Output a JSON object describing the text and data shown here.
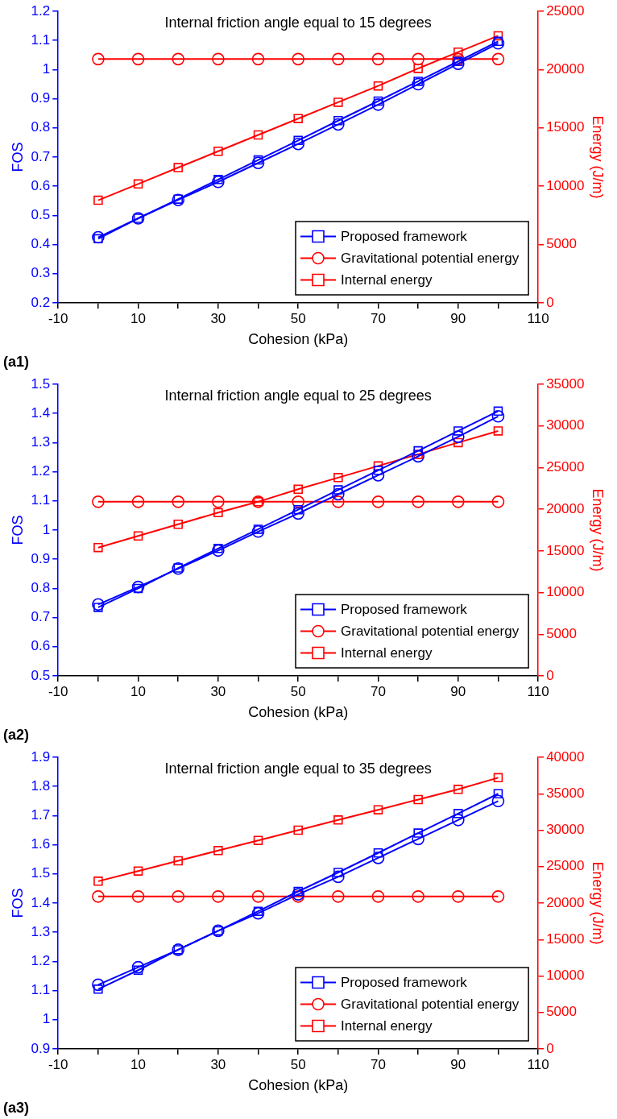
{
  "chart_data": [
    {
      "type": "line",
      "title": "Internal friction angle equal to 15 degrees",
      "xlabel": "Cohesion (kPa)",
      "ylabel": "FOS",
      "y2label": "Energy (J/m)",
      "annotations": [
        "(a1)"
      ],
      "x": [
        0,
        10,
        20,
        30,
        40,
        50,
        60,
        70,
        80,
        90,
        100
      ],
      "xlim": [
        -10,
        110
      ],
      "xticks": [
        -10,
        {
          "value": 0,
          "label": null
        },
        10,
        {
          "value": 20,
          "label": null
        },
        30,
        {
          "value": 40,
          "label": null
        },
        50,
        {
          "value": 60,
          "label": null
        },
        70,
        {
          "value": 80,
          "label": null
        },
        90,
        {
          "value": 100,
          "label": null
        },
        110
      ],
      "ylim": [
        0.2,
        1.2
      ],
      "yticks": [
        0.2,
        0.3,
        0.4,
        0.5,
        0.6,
        0.7,
        0.8,
        0.9,
        1,
        1.1,
        1.2
      ],
      "y2lim": [
        0,
        25000
      ],
      "y2ticks": [
        0,
        5000,
        10000,
        15000,
        20000,
        25000
      ],
      "grid": false,
      "legend": "bottom right",
      "line_style": "solid",
      "series": [
        {
          "color": "#0000ff",
          "marker": "circle",
          "values": [
            0.425,
            0.49,
            0.553,
            0.615,
            0.68,
            0.745,
            0.812,
            0.88,
            0.95,
            1.02,
            1.09
          ]
        },
        {
          "name": "Proposed framework",
          "color": "#0000ff",
          "marker": "square",
          "values": [
            0.42,
            0.49,
            0.556,
            0.623,
            0.69,
            0.757,
            0.825,
            0.892,
            0.96,
            1.028,
            1.097
          ]
        },
        {
          "name": "Gravitational potential energy",
          "color": "#ff0000",
          "marker": "circle",
          "axis": "y2",
          "values": [
            20900,
            20900,
            20900,
            20900,
            20900,
            20900,
            20900,
            20900,
            20900,
            20900,
            20900
          ]
        },
        {
          "name": "Internal energy",
          "color": "#ff0000",
          "marker": "square",
          "axis": "y2",
          "values": [
            8800,
            10200,
            11600,
            13000,
            14400,
            15800,
            17200,
            18600,
            20100,
            21500,
            22900
          ]
        }
      ]
    },
    {
      "type": "line",
      "title": "Internal friction angle equal to 25 degrees",
      "xlabel": "Cohesion (kPa)",
      "ylabel": "FOS",
      "y2label": "Energy (J/m)",
      "annotations": [
        "(a2)"
      ],
      "x": [
        0,
        10,
        20,
        30,
        40,
        50,
        60,
        70,
        80,
        90,
        100
      ],
      "xlim": [
        -10,
        110
      ],
      "xticks": [
        -10,
        {
          "value": 0,
          "label": null
        },
        10,
        {
          "value": 20,
          "label": null
        },
        30,
        {
          "value": 40,
          "label": null
        },
        50,
        {
          "value": 60,
          "label": null
        },
        70,
        {
          "value": 80,
          "label": null
        },
        90,
        {
          "value": 100,
          "label": null
        },
        110
      ],
      "ylim": [
        0.5,
        1.5
      ],
      "yticks": [
        0.5,
        0.6,
        0.7,
        0.8,
        0.9,
        1,
        1.1,
        1.2,
        1.3,
        1.4,
        1.5
      ],
      "y2lim": [
        0,
        35000
      ],
      "y2ticks": [
        0,
        5000,
        10000,
        15000,
        20000,
        25000,
        30000,
        35000
      ],
      "grid": false,
      "legend": "bottom right",
      "line_style": "solid",
      "series": [
        {
          "color": "#0000ff",
          "marker": "circle",
          "values": [
            0.745,
            0.805,
            0.868,
            0.93,
            0.995,
            1.057,
            1.123,
            1.188,
            1.253,
            1.32,
            1.39
          ]
        },
        {
          "name": "Proposed framework",
          "color": "#0000ff",
          "marker": "square",
          "values": [
            0.735,
            0.8,
            0.87,
            0.937,
            1.003,
            1.07,
            1.138,
            1.205,
            1.272,
            1.34,
            1.408
          ]
        },
        {
          "name": "Gravitational potential energy",
          "color": "#ff0000",
          "marker": "circle",
          "axis": "y2",
          "values": [
            20900,
            20900,
            20900,
            20900,
            20900,
            20900,
            20900,
            20900,
            20900,
            20900,
            20900
          ]
        },
        {
          "name": "Internal energy",
          "color": "#ff0000",
          "marker": "square",
          "axis": "y2",
          "values": [
            15400,
            16800,
            18200,
            19600,
            20900,
            22400,
            23800,
            25200,
            26600,
            28000,
            29400
          ]
        }
      ]
    },
    {
      "type": "line",
      "title": "Internal friction angle equal to 35 degrees",
      "xlabel": "Cohesion (kPa)",
      "ylabel": "FOS",
      "y2label": "Energy (J/m)",
      "annotations": [
        "(a3)"
      ],
      "x": [
        0,
        10,
        20,
        30,
        40,
        50,
        60,
        70,
        80,
        90,
        100
      ],
      "xlim": [
        -10,
        110
      ],
      "xticks": [
        -10,
        {
          "value": 0,
          "label": null
        },
        10,
        {
          "value": 20,
          "label": null
        },
        30,
        {
          "value": 40,
          "label": null
        },
        50,
        {
          "value": 60,
          "label": null
        },
        70,
        {
          "value": 80,
          "label": null
        },
        90,
        {
          "value": 100,
          "label": null
        },
        110
      ],
      "ylim": [
        0.9,
        1.9
      ],
      "yticks": [
        0.9,
        1,
        1.1,
        1.2,
        1.3,
        1.4,
        1.5,
        1.6,
        1.7,
        1.8,
        1.9
      ],
      "y2lim": [
        0,
        40000
      ],
      "y2ticks": [
        0,
        5000,
        10000,
        15000,
        20000,
        25000,
        30000,
        35000,
        40000
      ],
      "grid": false,
      "legend": "bottom right",
      "line_style": "solid",
      "series": [
        {
          "color": "#0000ff",
          "marker": "circle",
          "values": [
            1.12,
            1.18,
            1.24,
            1.305,
            1.365,
            1.43,
            1.49,
            1.555,
            1.62,
            1.685,
            1.75
          ]
        },
        {
          "name": "Proposed framework",
          "color": "#0000ff",
          "marker": "square",
          "values": [
            1.105,
            1.17,
            1.24,
            1.305,
            1.372,
            1.44,
            1.505,
            1.572,
            1.64,
            1.707,
            1.775
          ]
        },
        {
          "name": "Gravitational potential energy",
          "color": "#ff0000",
          "marker": "circle",
          "axis": "y2",
          "values": [
            20900,
            20900,
            20900,
            20900,
            20900,
            20900,
            20900,
            20900,
            20900,
            20900,
            20900
          ]
        },
        {
          "name": "Internal energy",
          "color": "#ff0000",
          "marker": "square",
          "axis": "y2",
          "values": [
            23000,
            24400,
            25800,
            27200,
            28600,
            30000,
            31400,
            32800,
            34200,
            35600,
            37200
          ]
        }
      ]
    }
  ]
}
